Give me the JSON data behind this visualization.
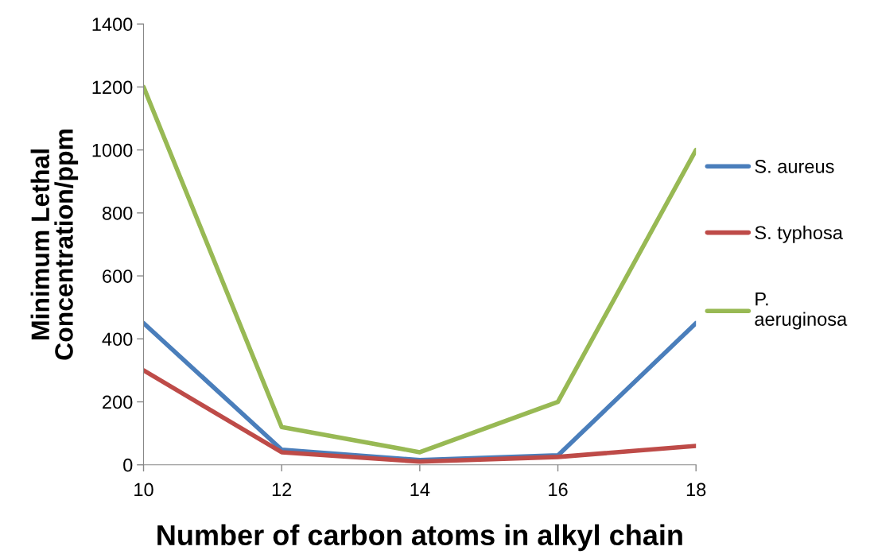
{
  "chart_data": {
    "type": "line",
    "xlabel": "Number of carbon atoms in alkyl chain",
    "ylabel": "Minimum Lethal\nConcentration/ppm",
    "x": [
      10,
      12,
      14,
      16,
      18
    ],
    "xlim": [
      10,
      18
    ],
    "xticks": [
      10,
      12,
      14,
      16,
      18
    ],
    "ylim": [
      0,
      1400
    ],
    "yticks": [
      0,
      200,
      400,
      600,
      800,
      1000,
      1200,
      1400
    ],
    "grid": false,
    "legend": "right",
    "marker": "none",
    "line_style": "solid",
    "series": [
      {
        "name": "S. aureus",
        "color": "#4a7ebb",
        "values": [
          450,
          48,
          15,
          30,
          450
        ]
      },
      {
        "name": "S. typhosa",
        "color": "#be4b48",
        "values": [
          300,
          40,
          10,
          25,
          60
        ]
      },
      {
        "name": "P.\naeruginosa",
        "color": "#98b954",
        "values": [
          1200,
          120,
          40,
          200,
          1000
        ]
      }
    ]
  }
}
